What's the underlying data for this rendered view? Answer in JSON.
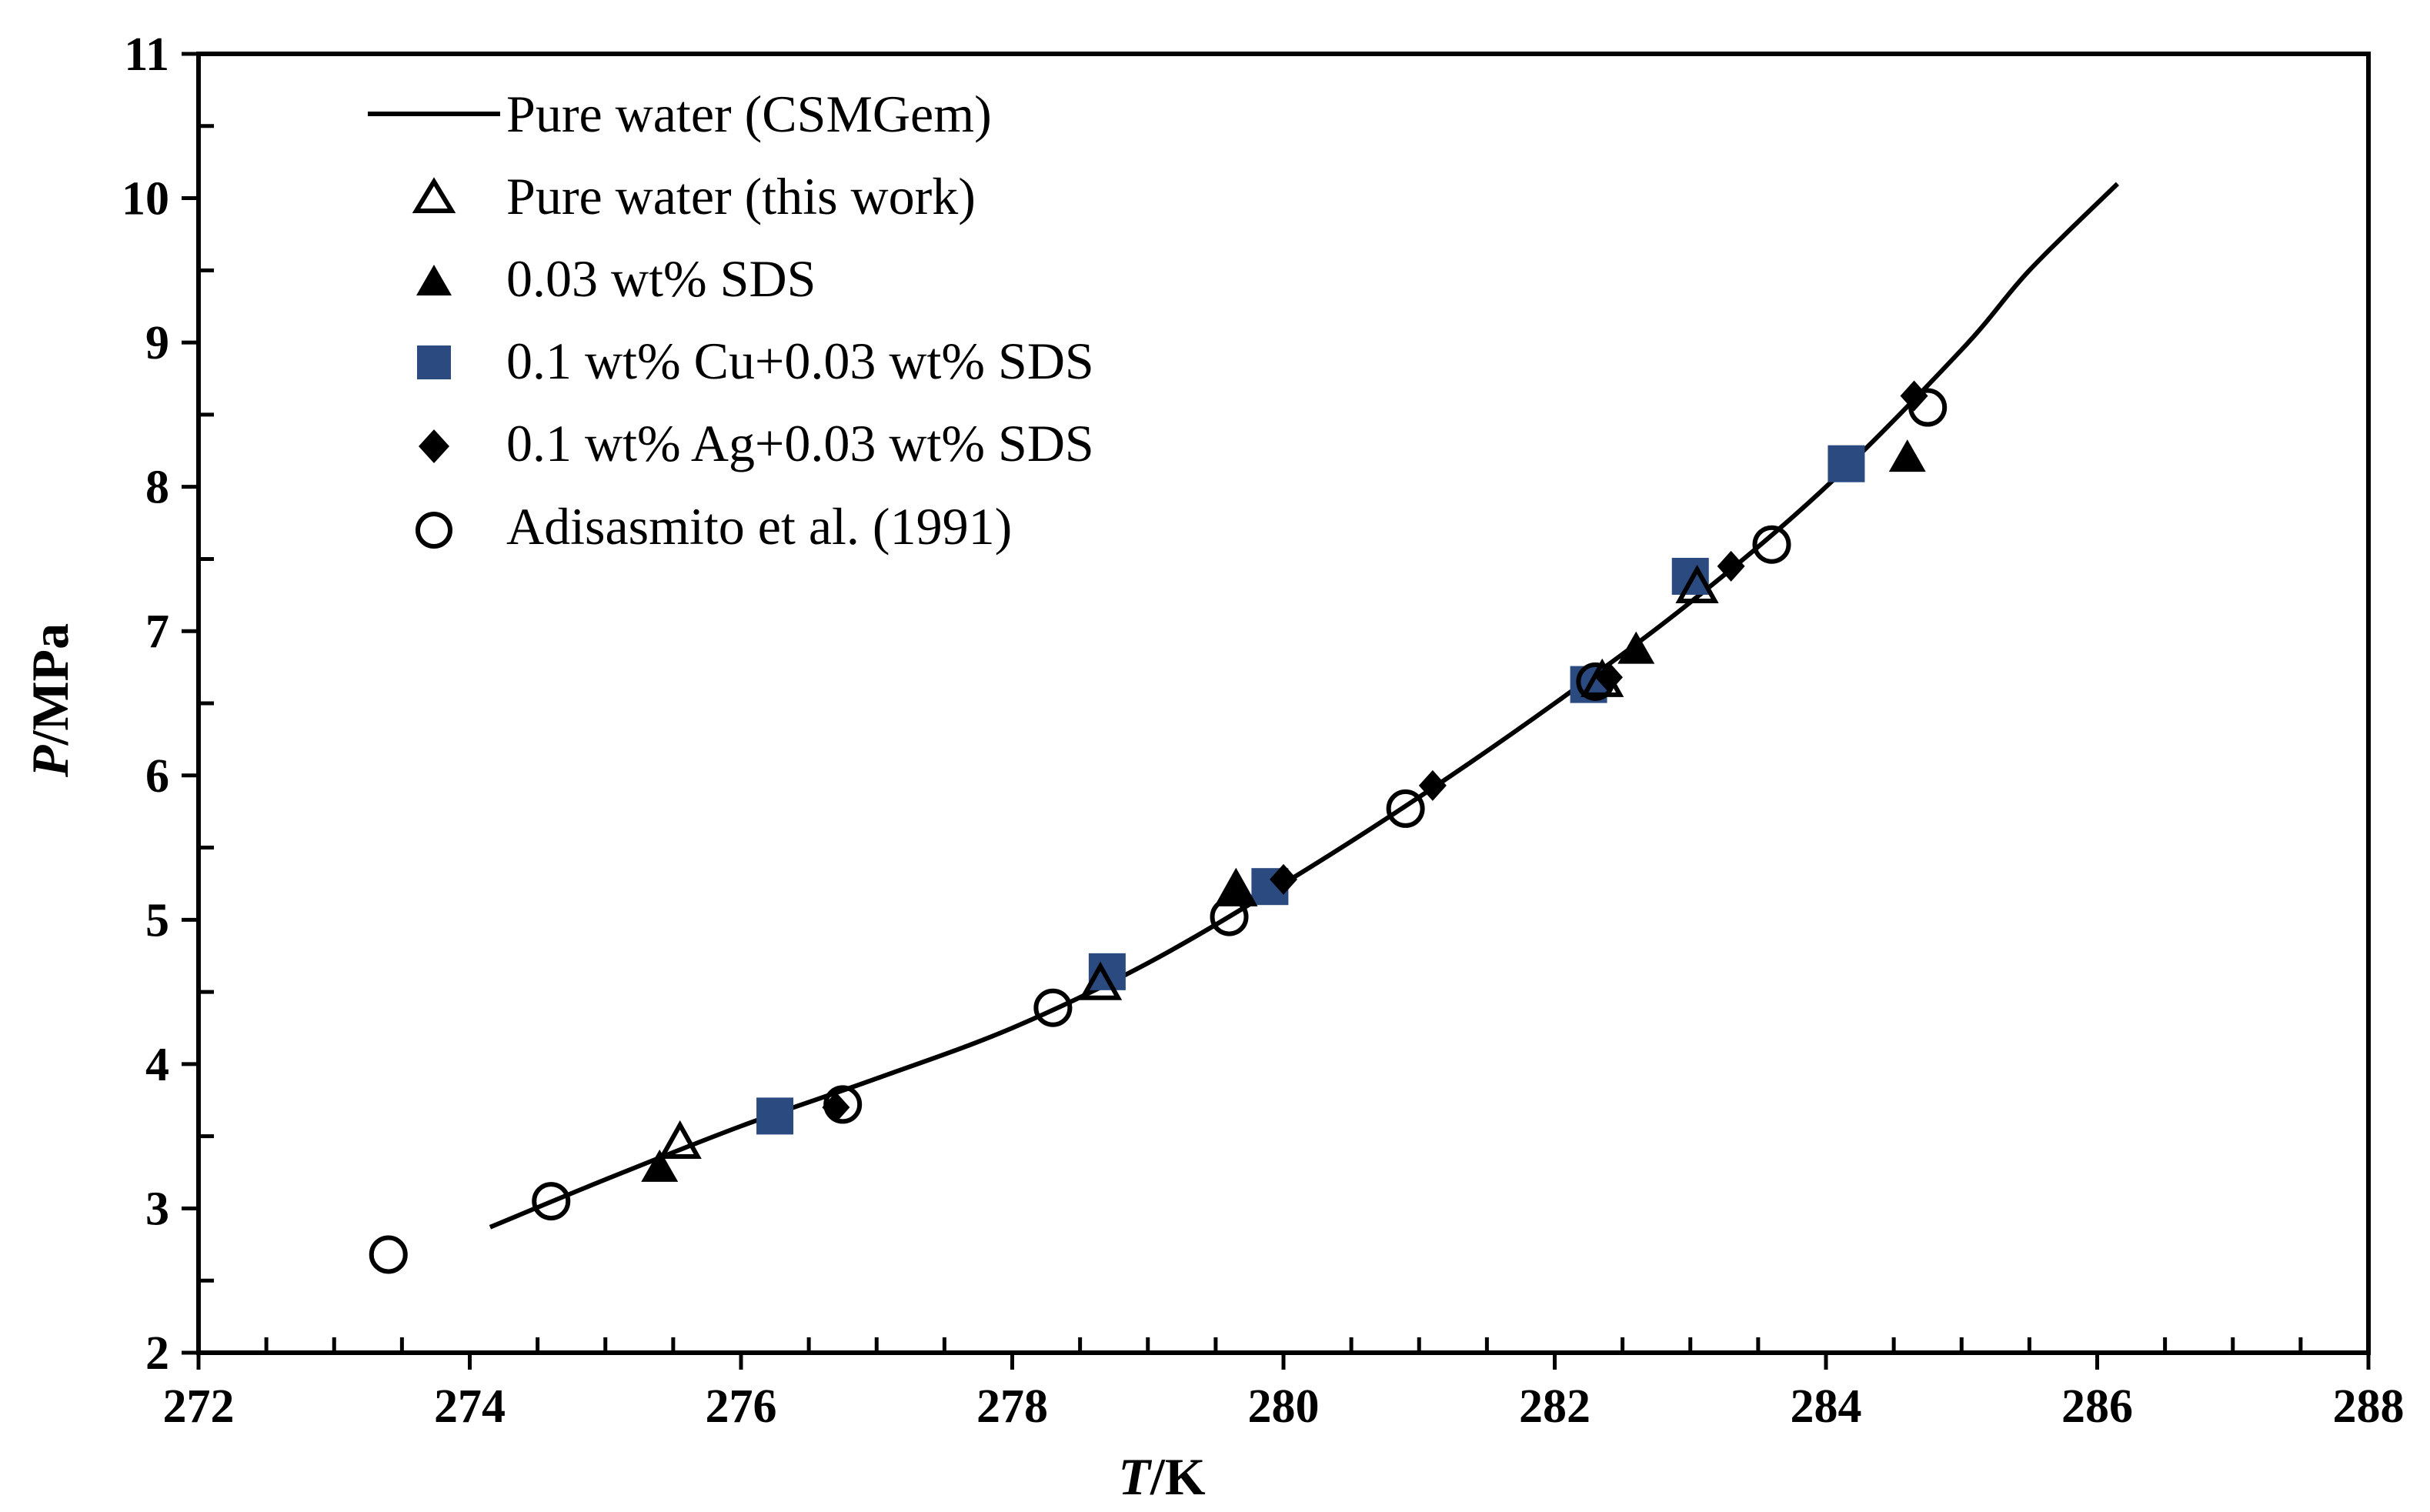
{
  "chart_data": {
    "type": "scatter",
    "xlabel_italic": "T",
    "xlabel_unit": "/K",
    "ylabel_italic": "P",
    "ylabel_unit": "/MPa",
    "xlim": [
      272,
      288
    ],
    "ylim": [
      2,
      11
    ],
    "x_ticks": [
      272,
      274,
      276,
      278,
      280,
      282,
      284,
      286,
      288
    ],
    "y_ticks": [
      2,
      3,
      4,
      5,
      6,
      7,
      8,
      9,
      10,
      11
    ],
    "x_tick_labels": [
      "272",
      "274",
      "276",
      "278",
      "280",
      "282",
      "284",
      "286",
      "288"
    ],
    "y_tick_labels": [
      "2",
      "3",
      "4",
      "5",
      "6",
      "7",
      "8",
      "9",
      "10",
      "11"
    ],
    "grid": false,
    "legend_position": "top-left",
    "colors": {
      "cu": "#2a4a80",
      "black": "#000000"
    },
    "series": [
      {
        "name": "Pure water (CSMGem)",
        "marker": "line",
        "points": [
          [
            274.15,
            2.87
          ],
          [
            275,
            3.2
          ],
          [
            276,
            3.57
          ],
          [
            277,
            3.9
          ],
          [
            278,
            4.25
          ],
          [
            279,
            4.7
          ],
          [
            280,
            5.25
          ],
          [
            281,
            5.85
          ],
          [
            282,
            6.5
          ],
          [
            283,
            7.2
          ],
          [
            284,
            8.0
          ],
          [
            285,
            8.95
          ],
          [
            285.5,
            9.5
          ],
          [
            286.15,
            10.1
          ]
        ]
      },
      {
        "name": "Pure water (this work)",
        "marker": "triangle-open",
        "points": [
          [
            275.55,
            3.45
          ],
          [
            278.65,
            4.55
          ],
          [
            279.65,
            5.2
          ],
          [
            282.35,
            6.65
          ],
          [
            283.05,
            7.3
          ]
        ]
      },
      {
        "name": "0.03 wt% SDS",
        "marker": "triangle-filled",
        "points": [
          [
            275.4,
            3.28
          ],
          [
            279.65,
            5.2
          ],
          [
            282.6,
            6.87
          ],
          [
            284.6,
            8.2
          ]
        ]
      },
      {
        "name": "0.1 wt% Cu+0.03 wt% SDS",
        "marker": "square",
        "points": [
          [
            276.25,
            3.64
          ],
          [
            278.7,
            4.64
          ],
          [
            279.9,
            5.23
          ],
          [
            282.25,
            6.63
          ],
          [
            283.0,
            7.38
          ],
          [
            284.15,
            8.16
          ]
        ]
      },
      {
        "name": " 0.1 wt% Ag+0.03 wt% SDS",
        "marker": "diamond",
        "points": [
          [
            276.7,
            3.7
          ],
          [
            280.0,
            5.28
          ],
          [
            281.1,
            5.93
          ],
          [
            282.4,
            6.68
          ],
          [
            283.3,
            7.45
          ],
          [
            284.65,
            8.63
          ]
        ]
      },
      {
        "name": "Adisasmito et al. (1991)",
        "marker": "circle-open",
        "points": [
          [
            273.4,
            2.68
          ],
          [
            274.6,
            3.05
          ],
          [
            276.75,
            3.72
          ],
          [
            278.3,
            4.39
          ],
          [
            279.6,
            5.02
          ],
          [
            280.9,
            5.77
          ],
          [
            282.3,
            6.65
          ],
          [
            283.6,
            7.6
          ],
          [
            284.75,
            8.55
          ]
        ]
      }
    ]
  }
}
